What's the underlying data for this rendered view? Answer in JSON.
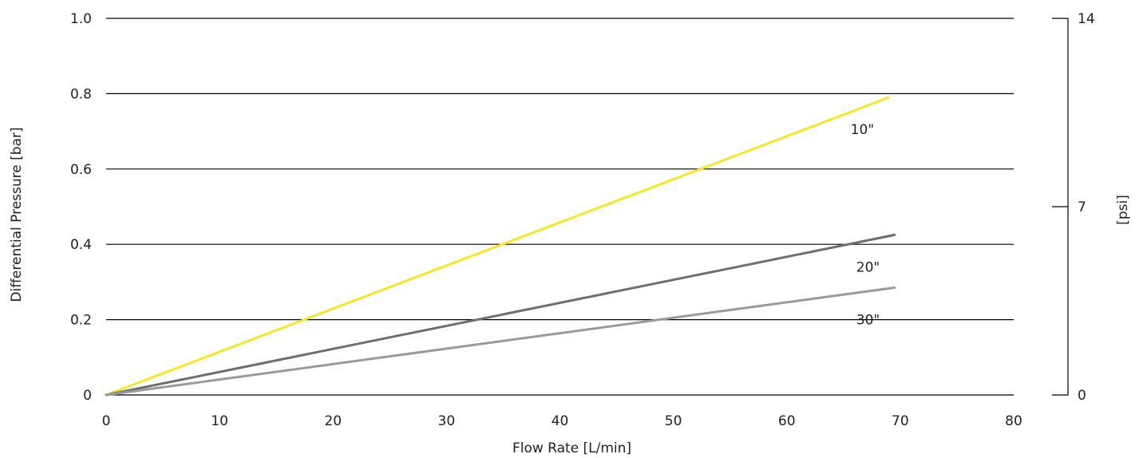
{
  "chart_data": {
    "type": "line",
    "xlabel": "Flow Rate [L/min]",
    "ylabel": "Differential Pressure [bar]",
    "y2label": "[psi]",
    "xlim": [
      0,
      80
    ],
    "ylim": [
      0,
      1.0
    ],
    "y2lim": [
      0,
      14
    ],
    "x_ticks": [
      "0",
      "10",
      "20",
      "30",
      "40",
      "50",
      "60",
      "70",
      "80"
    ],
    "y_ticks": [
      "0",
      "0.2",
      "0.4",
      "0.6",
      "0.8",
      "1.0"
    ],
    "y2_ticks": [
      "0",
      "7",
      "14"
    ],
    "grid": true,
    "series": [
      {
        "name": "10\"",
        "color": "#f7e52a",
        "x": [
          0,
          69
        ],
        "y": [
          0,
          0.79
        ]
      },
      {
        "name": "20\"",
        "color": "#6e6e6e",
        "x": [
          0,
          69.5
        ],
        "y": [
          0,
          0.425
        ]
      },
      {
        "name": "30\"",
        "color": "#9a9a9a",
        "x": [
          0,
          69.5
        ],
        "y": [
          0,
          0.285
        ]
      }
    ]
  }
}
